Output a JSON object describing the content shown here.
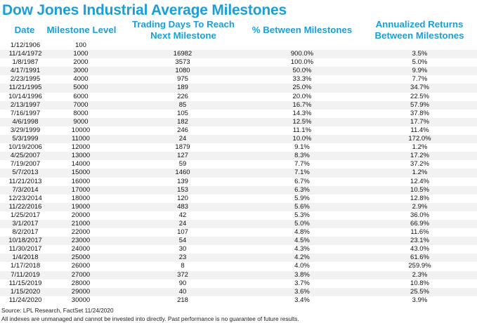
{
  "title": "Dow Jones Industrial Average Milestones",
  "chart_data": {
    "type": "table",
    "title": "Dow Jones Industrial Average Milestones",
    "columns": [
      "Date",
      "Milestone Level",
      "Trading Days To Reach Next Milestone",
      "% Between Milestones",
      "Annualized Returns Between Milestones"
    ],
    "rows": [
      [
        "1/12/1906",
        "100",
        "",
        "",
        ""
      ],
      [
        "11/14/1972",
        "1000",
        "16982",
        "900.0%",
        "3.5%"
      ],
      [
        "1/8/1987",
        "2000",
        "3573",
        "100.0%",
        "5.0%"
      ],
      [
        "4/17/1991",
        "3000",
        "1080",
        "50.0%",
        "9.9%"
      ],
      [
        "2/23/1995",
        "4000",
        "975",
        "33.3%",
        "7.7%"
      ],
      [
        "11/21/1995",
        "5000",
        "189",
        "25.0%",
        "34.7%"
      ],
      [
        "10/14/1996",
        "6000",
        "226",
        "20.0%",
        "22.5%"
      ],
      [
        "2/13/1997",
        "7000",
        "85",
        "16.7%",
        "57.9%"
      ],
      [
        "7/16/1997",
        "8000",
        "105",
        "14.3%",
        "37.8%"
      ],
      [
        "4/6/1998",
        "9000",
        "182",
        "12.5%",
        "17.7%"
      ],
      [
        "3/29/1999",
        "10000",
        "246",
        "11.1%",
        "11.4%"
      ],
      [
        "5/3/1999",
        "11000",
        "24",
        "10.0%",
        "172.0%"
      ],
      [
        "10/19/2006",
        "12000",
        "1879",
        "9.1%",
        "1.2%"
      ],
      [
        "4/25/2007",
        "13000",
        "127",
        "8.3%",
        "17.2%"
      ],
      [
        "7/19/2007",
        "14000",
        "59",
        "7.7%",
        "37.2%"
      ],
      [
        "5/7/2013",
        "15000",
        "1460",
        "7.1%",
        "1.2%"
      ],
      [
        "11/21/2013",
        "16000",
        "139",
        "6.7%",
        "12.4%"
      ],
      [
        "7/3/2014",
        "17000",
        "153",
        "6.3%",
        "10.5%"
      ],
      [
        "12/23/2014",
        "18000",
        "120",
        "5.9%",
        "12.8%"
      ],
      [
        "11/22/2016",
        "19000",
        "483",
        "5.6%",
        "2.9%"
      ],
      [
        "1/25/2017",
        "20000",
        "42",
        "5.3%",
        "36.0%"
      ],
      [
        "3/1/2017",
        "21000",
        "24",
        "5.0%",
        "66.9%"
      ],
      [
        "8/2/2017",
        "22000",
        "107",
        "4.8%",
        "11.6%"
      ],
      [
        "10/18/2017",
        "23000",
        "54",
        "4.5%",
        "23.1%"
      ],
      [
        "11/30/2017",
        "24000",
        "30",
        "4.3%",
        "43.0%"
      ],
      [
        "1/4/2018",
        "25000",
        "23",
        "4.2%",
        "61.6%"
      ],
      [
        "1/17/2018",
        "26000",
        "8",
        "4.0%",
        "259.9%"
      ],
      [
        "7/11/2019",
        "27000",
        "372",
        "3.8%",
        "2.3%"
      ],
      [
        "11/15/2019",
        "28000",
        "90",
        "3.7%",
        "10.8%"
      ],
      [
        "1/15/2020",
        "29000",
        "40",
        "3.6%",
        "25.5%"
      ],
      [
        "11/24/2020",
        "30000",
        "218",
        "3.4%",
        "3.9%"
      ]
    ]
  },
  "headers": {
    "date": "Date",
    "level": "Milestone Level",
    "days_line1": "Trading Days To Reach",
    "days_line2": "Next Milestone",
    "pct": "% Between Milestones",
    "ann_line1": "Annualized Returns",
    "ann_line2": "Between Milestones"
  },
  "footer": {
    "source": "Source: LPL Research, FactSet 11/24/2020",
    "disclaimer": "All indexes are unmanaged and cannot be invested into directly. Past performance is no guarantee of future results."
  },
  "colors": {
    "accent": "#1a9fdc",
    "row_shade": "#f2f2f2"
  }
}
